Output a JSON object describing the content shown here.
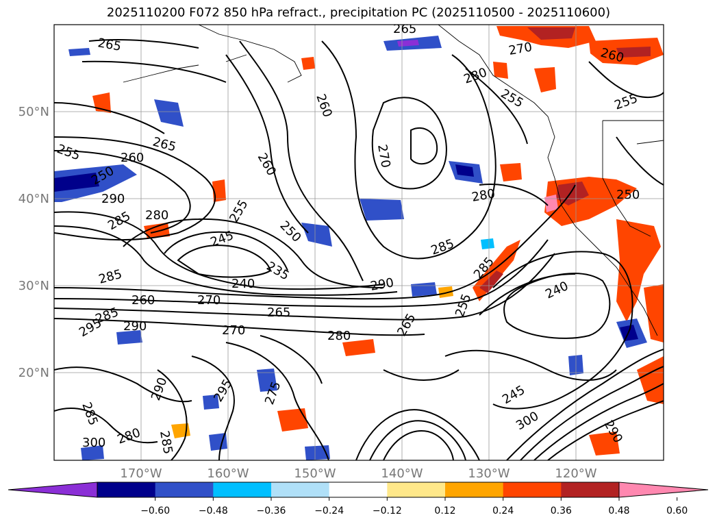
{
  "title": "2025110200 F072 850 hPa refract., precipitation PC (2025110500 - 2025110600)",
  "map": {
    "lat_labels": [
      "50°N",
      "40°N",
      "30°N",
      "20°N"
    ],
    "lon_labels": [
      "170°W",
      "160°W",
      "150°W",
      "140°W",
      "130°W",
      "120°W"
    ],
    "contour_labels": [
      "265",
      "260",
      "255",
      "250",
      "290",
      "285",
      "280",
      "265",
      "260",
      "255",
      "245",
      "250",
      "240",
      "235",
      "285",
      "260",
      "270",
      "265",
      "290",
      "280",
      "270",
      "265",
      "255",
      "260",
      "285",
      "290",
      "285",
      "295",
      "285",
      "300",
      "280",
      "285",
      "295",
      "275",
      "290",
      "285",
      "270",
      "255",
      "260",
      "270",
      "280",
      "245",
      "240",
      "300",
      "290",
      "280",
      "265",
      "250",
      "255"
    ]
  },
  "colorbar": {
    "ticks": [
      "−0.60",
      "−0.48",
      "−0.36",
      "−0.24",
      "−0.12",
      "0.12",
      "0.24",
      "0.36",
      "0.48",
      "0.60"
    ],
    "colors": [
      "#8b2fd6",
      "#00008b",
      "#3050c8",
      "#00bfff",
      "#b0e0f8",
      "#ffffff",
      "#ffe88a",
      "#ffa500",
      "#ff4500",
      "#b22222",
      "#ff88b0"
    ]
  }
}
